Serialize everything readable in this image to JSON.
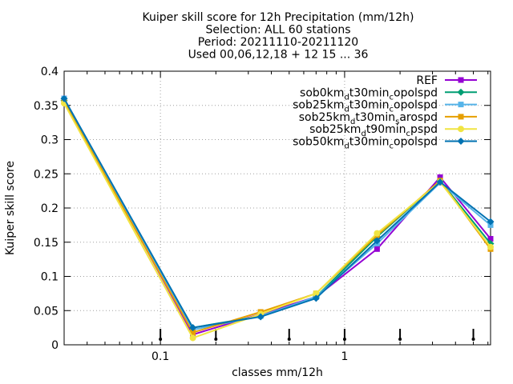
{
  "chart_data": {
    "type": "line",
    "title_lines": [
      "Kuiper skill score  for 12h Precipitation (mm/12h)",
      "Selection: ALL     60 stations",
      "Period: 20211110-20211120",
      "Used 00,06,12,18 + 12 15 ... 36"
    ],
    "xlabel": "classes mm/12h",
    "ylabel": "Kuiper skill score",
    "x_scale": "log",
    "xlim": [
      0.03,
      6.2
    ],
    "ylim": [
      0,
      0.4
    ],
    "x_ticks": [
      {
        "value": 0.1,
        "label": "0.1"
      },
      {
        "value": 1,
        "label": "1"
      }
    ],
    "y_ticks": [
      {
        "value": 0,
        "label": "0"
      },
      {
        "value": 0.05,
        "label": "0.05"
      },
      {
        "value": 0.1,
        "label": "0.1"
      },
      {
        "value": 0.15,
        "label": "0.15"
      },
      {
        "value": 0.2,
        "label": "0.2"
      },
      {
        "value": 0.25,
        "label": "0.25"
      },
      {
        "value": 0.3,
        "label": "0.3"
      },
      {
        "value": 0.35,
        "label": "0.35"
      },
      {
        "value": 0.4,
        "label": "0.4"
      }
    ],
    "grid": true,
    "legend_position": "top-right",
    "threshold_markers_x": [
      0.1,
      0.2,
      0.5,
      1,
      2,
      5
    ],
    "x": [
      0.03,
      0.15,
      0.35,
      0.7,
      1.5,
      3.3,
      6.2
    ],
    "series": [
      {
        "name": "REF",
        "main": "sob0km",
        "sub": "",
        "tail": "",
        "color": "#9400d3",
        "values": [
          0.36,
          0.015,
          0.045,
          0.07,
          0.14,
          0.245,
          0.155
        ]
      },
      {
        "name": "sob0kmdt30mincopolspd",
        "main": "sob0km",
        "sub": "d",
        "tail": "t30min",
        "sub2": "c",
        "tail2": "opolspd",
        "color": "#009e73",
        "values": [
          0.357,
          0.025,
          0.042,
          0.07,
          0.158,
          0.24,
          0.148
        ]
      },
      {
        "name": "sob25kmdt30mincopolspd",
        "main": "sob25km",
        "sub": "d",
        "tail": "t30min",
        "sub2": "c",
        "tail2": "opolspd",
        "color": "#56b4e9",
        "values": [
          0.36,
          0.022,
          0.042,
          0.07,
          0.148,
          0.237,
          0.175
        ]
      },
      {
        "name": "sob25kmdt30minsarospd",
        "main": "sob25km",
        "sub": "d",
        "tail": "t30min",
        "sub2": "s",
        "tail2": "arospd",
        "color": "#e69f00",
        "values": [
          0.355,
          0.018,
          0.048,
          0.075,
          0.16,
          0.24,
          0.14
        ]
      },
      {
        "name": "sob25kmdt90mincpspd",
        "main": "sob25km",
        "sub": "d",
        "tail": "t90min",
        "sub2": "c",
        "tail2": "pspd",
        "color": "#f0e442",
        "values": [
          0.353,
          0.01,
          0.045,
          0.075,
          0.163,
          0.238,
          0.143
        ]
      },
      {
        "name": "sob50kmdt30mincopolspd",
        "main": "sob50km",
        "sub": "d",
        "tail": "t30min",
        "sub2": "c",
        "tail2": "opolspd",
        "color": "#0072b2",
        "values": [
          0.36,
          0.025,
          0.041,
          0.068,
          0.152,
          0.238,
          0.18
        ]
      }
    ],
    "legend_labels": [
      {
        "parts": [
          {
            "t": "REF",
            "s": false
          }
        ]
      },
      {
        "parts": [
          {
            "t": "sob0km",
            "s": false
          },
          {
            "t": "d",
            "s": true
          },
          {
            "t": "t30min",
            "s": false
          },
          {
            "t": "c",
            "s": true
          },
          {
            "t": "opolspd",
            "s": false
          }
        ]
      },
      {
        "parts": [
          {
            "t": "sob25km",
            "s": false
          },
          {
            "t": "d",
            "s": true
          },
          {
            "t": "t30min",
            "s": false
          },
          {
            "t": "c",
            "s": true
          },
          {
            "t": "opolspd",
            "s": false
          }
        ]
      },
      {
        "parts": [
          {
            "t": "sob25km",
            "s": false
          },
          {
            "t": "d",
            "s": true
          },
          {
            "t": "t30min",
            "s": false
          },
          {
            "t": "s",
            "s": true
          },
          {
            "t": "arospd",
            "s": false
          }
        ]
      },
      {
        "parts": [
          {
            "t": "sob25km",
            "s": false
          },
          {
            "t": "d",
            "s": true
          },
          {
            "t": "t90min",
            "s": false
          },
          {
            "t": "c",
            "s": true
          },
          {
            "t": "pspd",
            "s": false
          }
        ]
      },
      {
        "parts": [
          {
            "t": "sob50km",
            "s": false
          },
          {
            "t": "d",
            "s": true
          },
          {
            "t": "t30min",
            "s": false
          },
          {
            "t": "c",
            "s": true
          },
          {
            "t": "opolspd",
            "s": false
          }
        ]
      }
    ]
  }
}
